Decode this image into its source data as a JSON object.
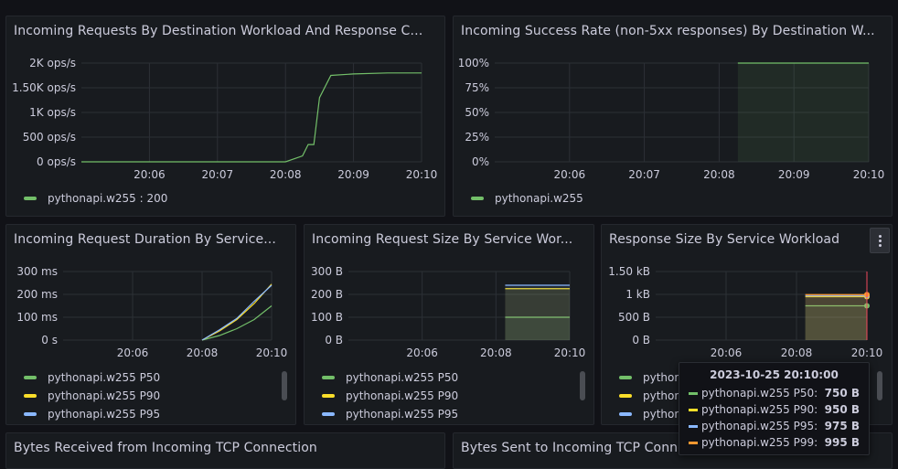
{
  "colors": {
    "green": "#73bf69",
    "yellow": "#fade2a",
    "cyan": "#8ab8ff",
    "orange": "#ff9830",
    "red": "#f2495c",
    "grid": "#2c3036",
    "fill": "#2f3526"
  },
  "panels": [
    {
      "title": "Incoming Requests By Destination Workload And Response Co...",
      "yticks": [
        "2K ops/s",
        "1.50K ops/s",
        "1K ops/s",
        "500 ops/s",
        "0 ops/s"
      ],
      "xticks": [
        "20:06",
        "20:07",
        "20:08",
        "20:09",
        "20:10"
      ],
      "legend": [
        "pythonapi.w255 : 200"
      ]
    },
    {
      "title": "Incoming Success Rate (non-5xx responses) By Destination W...",
      "yticks": [
        "100%",
        "75%",
        "50%",
        "25%",
        "0%"
      ],
      "xticks": [
        "20:06",
        "20:07",
        "20:08",
        "20:09",
        "20:10"
      ],
      "legend": [
        "pythonapi.w255"
      ]
    },
    {
      "title": "Incoming Request Duration By Service...",
      "yticks": [
        "300 ms",
        "200 ms",
        "100 ms",
        "0 s"
      ],
      "xticks": [
        "20:06",
        "20:08",
        "20:10"
      ],
      "legend": [
        "pythonapi.w255 P50",
        "pythonapi.w255 P90",
        "pythonapi.w255 P95"
      ]
    },
    {
      "title": "Incoming Request Size By Service Wor...",
      "yticks": [
        "300 B",
        "200 B",
        "100 B",
        "0 B"
      ],
      "xticks": [
        "20:06",
        "20:08",
        "20:10"
      ],
      "legend": [
        "pythonapi.w255 P50",
        "pythonapi.w255 P90",
        "pythonapi.w255 P95"
      ]
    },
    {
      "title": "Response Size By Service Workload",
      "yticks": [
        "1.50 kB",
        "1 kB",
        "500 B",
        "0 B"
      ],
      "xticks": [
        "20:06",
        "20:08",
        "20:10"
      ],
      "legend": [
        "pythonapi.w255 P50",
        "pythonapi.w255 P90",
        "pythonapi.w255 P95"
      ]
    },
    {
      "title": "Bytes Received from Incoming TCP Connection"
    },
    {
      "title": "Bytes Sent to Incoming TCP Connection"
    }
  ],
  "tooltip": {
    "time": "2023-10-25 20:10:00",
    "rows": [
      {
        "name": "pythonapi.w255 P50:",
        "value": "750 B"
      },
      {
        "name": "pythonapi.w255 P90:",
        "value": "950 B"
      },
      {
        "name": "pythonapi.w255 P95:",
        "value": "975 B"
      },
      {
        "name": "pythonapi.w255 P99:",
        "value": "995 B"
      }
    ]
  },
  "chart_data": [
    {
      "type": "line",
      "title": "Incoming Requests By Destination Workload And Response Co...",
      "ylabel": "",
      "ylim": [
        0,
        2000
      ],
      "x": [
        "20:05",
        "20:06",
        "20:07",
        "20:08",
        "20:08:15",
        "20:08:20",
        "20:08:25",
        "20:08:30",
        "20:08:40",
        "20:09",
        "20:09:30",
        "20:10"
      ],
      "series": [
        {
          "name": "pythonapi.w255 : 200",
          "values": [
            0,
            0,
            0,
            0,
            120,
            350,
            350,
            1300,
            1750,
            1780,
            1800,
            1800
          ]
        }
      ]
    },
    {
      "type": "area",
      "title": "Incoming Success Rate (non-5xx responses) By Destination W...",
      "ylim": [
        0,
        100
      ],
      "x": [
        "20:08:15",
        "20:09",
        "20:10"
      ],
      "series": [
        {
          "name": "pythonapi.w255",
          "values": [
            100,
            100,
            100
          ]
        }
      ]
    },
    {
      "type": "line",
      "title": "Incoming Request Duration By Service...",
      "ylim": [
        0,
        300
      ],
      "x": [
        "20:08",
        "20:08:30",
        "20:09",
        "20:09:30",
        "20:10"
      ],
      "series": [
        {
          "name": "pythonapi.w255 P50",
          "values": [
            0,
            20,
            50,
            90,
            150
          ]
        },
        {
          "name": "pythonapi.w255 P90",
          "values": [
            0,
            40,
            90,
            160,
            245
          ]
        },
        {
          "name": "pythonapi.w255 P95",
          "values": [
            0,
            45,
            95,
            170,
            240
          ]
        }
      ]
    },
    {
      "type": "area",
      "title": "Incoming Request Size By Service Wor...",
      "ylim": [
        0,
        300
      ],
      "x": [
        "20:08:15",
        "20:10"
      ],
      "series": [
        {
          "name": "pythonapi.w255 P50",
          "values": [
            100,
            100
          ]
        },
        {
          "name": "pythonapi.w255 P90",
          "values": [
            225,
            225
          ]
        },
        {
          "name": "pythonapi.w255 P95",
          "values": [
            240,
            240
          ]
        }
      ]
    },
    {
      "type": "area",
      "title": "Response Size By Service Workload",
      "ylim": [
        0,
        1500
      ],
      "x": [
        "20:08:15",
        "20:10"
      ],
      "series": [
        {
          "name": "pythonapi.w255 P50",
          "values": [
            750,
            750
          ]
        },
        {
          "name": "pythonapi.w255 P90",
          "values": [
            950,
            950
          ]
        },
        {
          "name": "pythonapi.w255 P95",
          "values": [
            975,
            975
          ]
        },
        {
          "name": "pythonapi.w255 P99",
          "values": [
            995,
            995
          ]
        }
      ]
    }
  ]
}
